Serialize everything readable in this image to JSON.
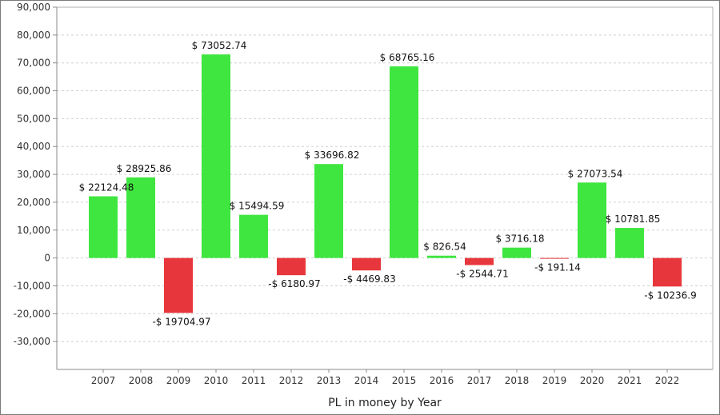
{
  "chart_data": {
    "type": "bar",
    "xlabel": "PL in money by Year",
    "ylabel": "",
    "ylim": [
      -40000,
      90000
    ],
    "yticks": [
      -30000,
      -20000,
      -10000,
      0,
      10000,
      20000,
      30000,
      40000,
      50000,
      60000,
      70000,
      80000,
      90000
    ],
    "ytick_labels": [
      "-30,000",
      "-20,000",
      "-10,000",
      "0",
      "10,000",
      "20,000",
      "30,000",
      "40,000",
      "50,000",
      "60,000",
      "70,000",
      "80,000",
      "90,000"
    ],
    "categories": [
      "2007",
      "2008",
      "2009",
      "2010",
      "2011",
      "2012",
      "2013",
      "2014",
      "2015",
      "2016",
      "2017",
      "2018",
      "2019",
      "2020",
      "2021",
      "2022"
    ],
    "values": [
      22124.48,
      28925.86,
      -19704.97,
      73052.74,
      15494.59,
      -6180.97,
      33696.82,
      -4469.83,
      68765.16,
      826.54,
      -2544.71,
      3716.18,
      -191.14,
      27073.54,
      10781.85,
      -10236.9
    ],
    "labels": [
      "$ 22124.48",
      "$ 28925.86",
      "-$ 19704.97",
      "$ 73052.74",
      "$ 15494.59",
      "-$ 6180.97",
      "$ 33696.82",
      "-$ 4469.83",
      "$ 68765.16",
      "$ 826.54",
      "-$ 2544.71",
      "$ 3716.18",
      "-$ 191.14",
      "$ 27073.54",
      "$ 10781.85",
      "-$ 10236.9"
    ],
    "grid": true,
    "colors": {
      "positive": "#3fe63f",
      "negative": "#e8373c",
      "grid": "#d0d0d0",
      "axis": "#8a8a8a"
    }
  }
}
